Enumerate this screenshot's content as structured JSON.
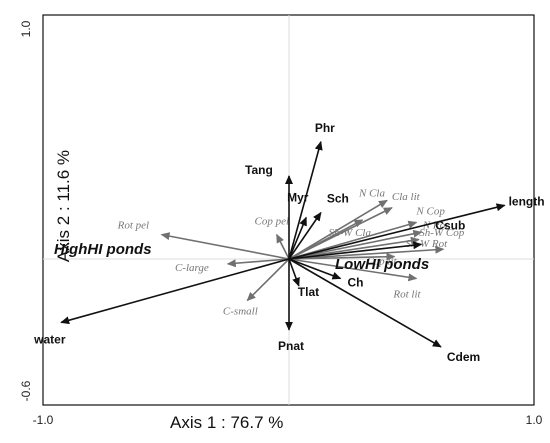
{
  "chart_data": {
    "type": "scatter",
    "subtype": "ordination biplot",
    "xlabel": "Axis 1 : 76.7 %",
    "ylabel": "Axis 2 : 11.6 %",
    "xlim": [
      -1.0,
      1.0
    ],
    "ylim": [
      -0.6,
      1.0
    ],
    "x_ticks": [
      "-1.0",
      "1.0"
    ],
    "y_ticks": [
      "1.0",
      "-0.6"
    ],
    "grid": false,
    "origin_lines": true,
    "colors": {
      "environment": "#111111",
      "species": "#707070"
    },
    "environmental_vectors": [
      {
        "label": "length",
        "x": 0.88,
        "y": 0.22
      },
      {
        "label": "Phr",
        "x": 0.13,
        "y": 0.48
      },
      {
        "label": "Tang",
        "x": 0.0,
        "y": 0.34
      },
      {
        "label": "Myr",
        "x": 0.07,
        "y": 0.17
      },
      {
        "label": "Sch",
        "x": 0.13,
        "y": 0.19
      },
      {
        "label": "Csub",
        "x": 0.54,
        "y": 0.06
      },
      {
        "label": "Ch",
        "x": 0.21,
        "y": -0.08
      },
      {
        "label": "Tlat",
        "x": 0.04,
        "y": -0.11
      },
      {
        "label": "Pnat",
        "x": 0.0,
        "y": -0.29
      },
      {
        "label": "Cdem",
        "x": 0.62,
        "y": -0.36
      },
      {
        "label": "water",
        "x": -0.93,
        "y": -0.26
      }
    ],
    "species_vectors": [
      {
        "label": "Rot pel",
        "x": -0.52,
        "y": 0.1
      },
      {
        "label": "Cop pel",
        "x": -0.05,
        "y": 0.1
      },
      {
        "label": "C-large",
        "x": -0.25,
        "y": -0.02
      },
      {
        "label": "C-small",
        "x": -0.17,
        "y": -0.17
      },
      {
        "label": "N Cla",
        "x": 0.4,
        "y": 0.24
      },
      {
        "label": "Cla lit",
        "x": 0.42,
        "y": 0.21
      },
      {
        "label": "Sh-W Cla",
        "x": 0.3,
        "y": 0.16
      },
      {
        "label": "N Cop",
        "x": 0.52,
        "y": 0.15
      },
      {
        "label": "Sh-W Cop",
        "x": 0.54,
        "y": 0.11
      },
      {
        "label": "N Rot",
        "x": 0.53,
        "y": 0.08
      },
      {
        "label": "Sh-W Rot",
        "x": 0.63,
        "y": 0.04
      },
      {
        "label": "Cop lit",
        "x": 0.43,
        "y": 0.01
      },
      {
        "label": "Rot lit",
        "x": 0.52,
        "y": -0.08
      }
    ],
    "group_labels": [
      {
        "label": "HighHI ponds",
        "x": -0.76,
        "y": 0.02
      },
      {
        "label": "LowHI ponds",
        "x": 0.38,
        "y": -0.04
      }
    ]
  }
}
